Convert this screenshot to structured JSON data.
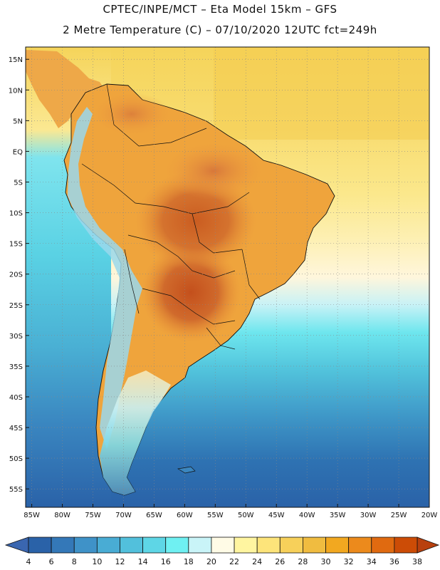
{
  "header": {
    "title_line1": "CPTEC/INPE/MCT –  Eta Model 15km – GFS",
    "title_line2": "2 Metre Temperature (C) – 07/10/2020 12UTC fct=249h"
  },
  "map": {
    "lon_range": [
      -86,
      -20
    ],
    "lat_range": [
      -58,
      17
    ],
    "lat_labels": [
      "15N",
      "10N",
      "5N",
      "EQ",
      "5S",
      "10S",
      "15S",
      "20S",
      "25S",
      "30S",
      "35S",
      "40S",
      "45S",
      "50S",
      "55S"
    ],
    "lat_values": [
      15,
      10,
      5,
      0,
      -5,
      -10,
      -15,
      -20,
      -25,
      -30,
      -35,
      -40,
      -45,
      -50,
      -55
    ],
    "lon_labels": [
      "85W",
      "80W",
      "75W",
      "70W",
      "65W",
      "60W",
      "55W",
      "50W",
      "45W",
      "40W",
      "35W",
      "30W",
      "25W",
      "20W"
    ],
    "lon_values": [
      -85,
      -80,
      -75,
      -70,
      -65,
      -60,
      -55,
      -50,
      -45,
      -40,
      -35,
      -30,
      -25,
      -20
    ]
  },
  "colorbar": {
    "labels": [
      "4",
      "6",
      "8",
      "10",
      "12",
      "14",
      "16",
      "18",
      "20",
      "22",
      "24",
      "26",
      "28",
      "30",
      "32",
      "34",
      "36",
      "38"
    ],
    "low_extend_color": "#3a66b0",
    "high_extend_color": "#b8400e",
    "colors": [
      "#2a62a8",
      "#3478b8",
      "#3f92c8",
      "#49acd4",
      "#52c0dc",
      "#5ed6e6",
      "#6ff0f2",
      "#c9f4f8",
      "#fffbe6",
      "#fff5a0",
      "#fde47a",
      "#f7d05a",
      "#f0bc40",
      "#f2a820",
      "#ec8a1c",
      "#e06a10",
      "#cc4c06"
    ]
  },
  "palette": {
    "ocean_north": "#f7d862",
    "ocean_mid": "#fdeeb0",
    "land_hot": "#d87838",
    "land_warm": "#ef9a36",
    "land_mild": "#f2b44a",
    "andes_cool": "#9ad8ec",
    "ocean_cool": "#52c0dc",
    "ocean_cold": "#2f6fb2"
  }
}
